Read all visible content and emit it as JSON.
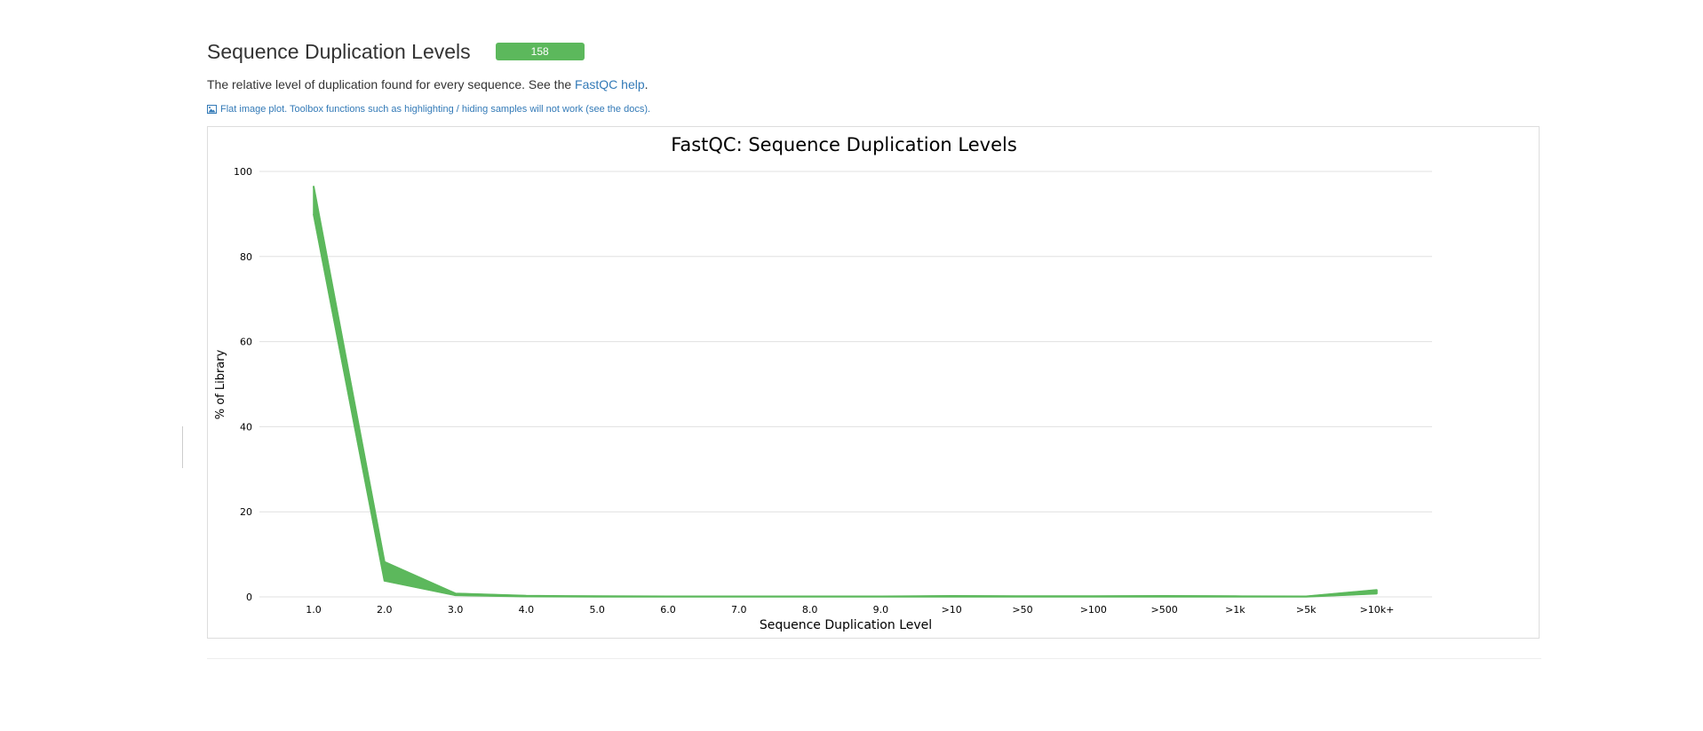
{
  "header": {
    "title": "Sequence Duplication Levels",
    "badge": "158",
    "description_prefix": "The relative level of duplication found for every sequence. See the ",
    "help_link": "FastQC help",
    "description_suffix": ".",
    "flat_plot_note": "Flat image plot. Toolbox functions such as highlighting / hiding samples will not work (see the docs)."
  },
  "colors": {
    "series": "#5cb85c",
    "badge": "#5cb85c",
    "link": "#337ab7",
    "grid": "#e0e0e0"
  },
  "chart_data": {
    "type": "line",
    "title": "FastQC: Sequence Duplication Levels",
    "xlabel": "Sequence Duplication Level",
    "ylabel": "% of Library",
    "categories": [
      "1.0",
      "2.0",
      "3.0",
      "4.0",
      "5.0",
      "6.0",
      "7.0",
      "8.0",
      "9.0",
      ">10",
      ">50",
      ">100",
      ">500",
      ">1k",
      ">5k",
      ">10k+"
    ],
    "ylim": [
      0,
      100
    ],
    "yticks": [
      0,
      20,
      40,
      60,
      80,
      100
    ],
    "grid": true,
    "series_envelope": {
      "upper": [
        96.5,
        8.2,
        0.8,
        0.25,
        0.15,
        0.1,
        0.1,
        0.1,
        0.1,
        0.2,
        0.15,
        0.15,
        0.2,
        0.15,
        0.1,
        1.6
      ],
      "lower": [
        90.0,
        3.8,
        0.4,
        0.1,
        0.05,
        0.05,
        0.05,
        0.05,
        0.05,
        0.05,
        0.05,
        0.05,
        0.05,
        0.05,
        0.05,
        0.8
      ]
    }
  }
}
